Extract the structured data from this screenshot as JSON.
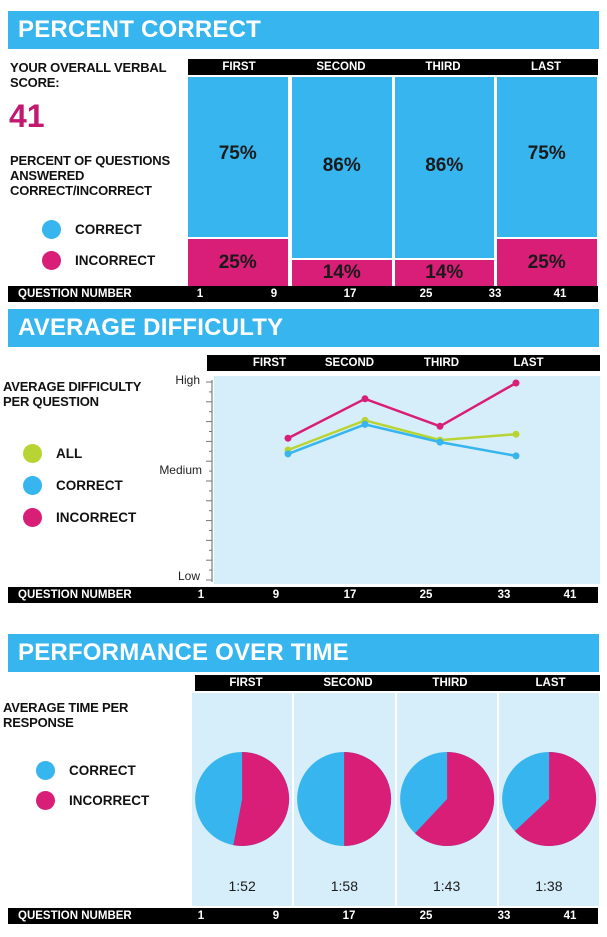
{
  "colors": {
    "correct": "#37b5ee",
    "incorrect": "#d81e77",
    "all": "#b8d433",
    "banner": "#37b5ee",
    "panel": "#d6eefa"
  },
  "quarters": [
    "FIRST",
    "SECOND",
    "THIRD",
    "LAST"
  ],
  "question_numbers": {
    "label": "QUESTION NUMBER",
    "ticks": [
      "1",
      "9",
      "17",
      "25",
      "33",
      "41"
    ]
  },
  "section1": {
    "title": "PERCENT CORRECT",
    "score_label": "YOUR OVERALL VERBAL SCORE:",
    "score": "41",
    "desc": "PERCENT OF QUESTIONS ANSWERED CORRECT/INCORRECT",
    "legend": {
      "correct": "CORRECT",
      "incorrect": "INCORRECT"
    }
  },
  "section2": {
    "title": "AVERAGE DIFFICULTY",
    "desc": "AVERAGE DIFFICULTY PER QUESTION",
    "legend": {
      "all": "ALL",
      "correct": "CORRECT",
      "incorrect": "INCORRECT"
    },
    "y_labels": {
      "high": "High",
      "medium": "Medium",
      "low": "Low"
    }
  },
  "section3": {
    "title": "PERFORMANCE OVER TIME",
    "desc": "AVERAGE TIME PER RESPONSE",
    "legend": {
      "correct": "CORRECT",
      "incorrect": "INCORRECT"
    }
  },
  "chart_data": [
    {
      "type": "bar",
      "title": "PERCENT CORRECT",
      "categories": [
        "FIRST",
        "SECOND",
        "THIRD",
        "LAST"
      ],
      "series": [
        {
          "name": "CORRECT",
          "values": [
            75,
            86,
            86,
            75
          ],
          "labels": [
            "75%",
            "86%",
            "86%",
            "75%"
          ]
        },
        {
          "name": "INCORRECT",
          "values": [
            25,
            14,
            14,
            25
          ],
          "labels": [
            "25%",
            "14%",
            "14%",
            "25%"
          ]
        }
      ],
      "stacked": true,
      "ylim": [
        0,
        100
      ],
      "xlabel": "QUESTION NUMBER"
    },
    {
      "type": "line",
      "title": "AVERAGE DIFFICULTY",
      "categories": [
        "FIRST",
        "SECOND",
        "THIRD",
        "LAST"
      ],
      "series": [
        {
          "name": "ALL",
          "values": [
            0.66,
            0.81,
            0.71,
            0.74
          ]
        },
        {
          "name": "CORRECT",
          "values": [
            0.64,
            0.79,
            0.7,
            0.63
          ]
        },
        {
          "name": "INCORRECT",
          "values": [
            0.72,
            0.92,
            0.78,
            1.0
          ]
        }
      ],
      "ylim": [
        0,
        1
      ],
      "y_tick_labels": [
        "Low",
        "Medium",
        "High"
      ],
      "xlabel": "QUESTION NUMBER"
    },
    {
      "type": "pie",
      "title": "PERFORMANCE OVER TIME",
      "categories": [
        "FIRST",
        "SECOND",
        "THIRD",
        "LAST"
      ],
      "series": [
        {
          "name": "CORRECT",
          "values": [
            47,
            50,
            38,
            37
          ]
        },
        {
          "name": "INCORRECT",
          "values": [
            53,
            50,
            62,
            63
          ]
        }
      ],
      "times": [
        "1:52",
        "1:58",
        "1:43",
        "1:38"
      ],
      "xlabel": "QUESTION NUMBER"
    }
  ]
}
